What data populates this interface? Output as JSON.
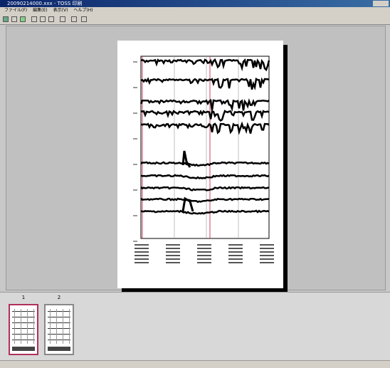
{
  "window": {
    "title": "20090214000.xxx - TOSS 印刷"
  },
  "menu": [
    "ファイル(F)",
    "編集(E)",
    "表示(V)",
    "ヘルプ(H)"
  ],
  "thumbnails": [
    {
      "label": "1"
    },
    {
      "label": "2"
    }
  ]
}
